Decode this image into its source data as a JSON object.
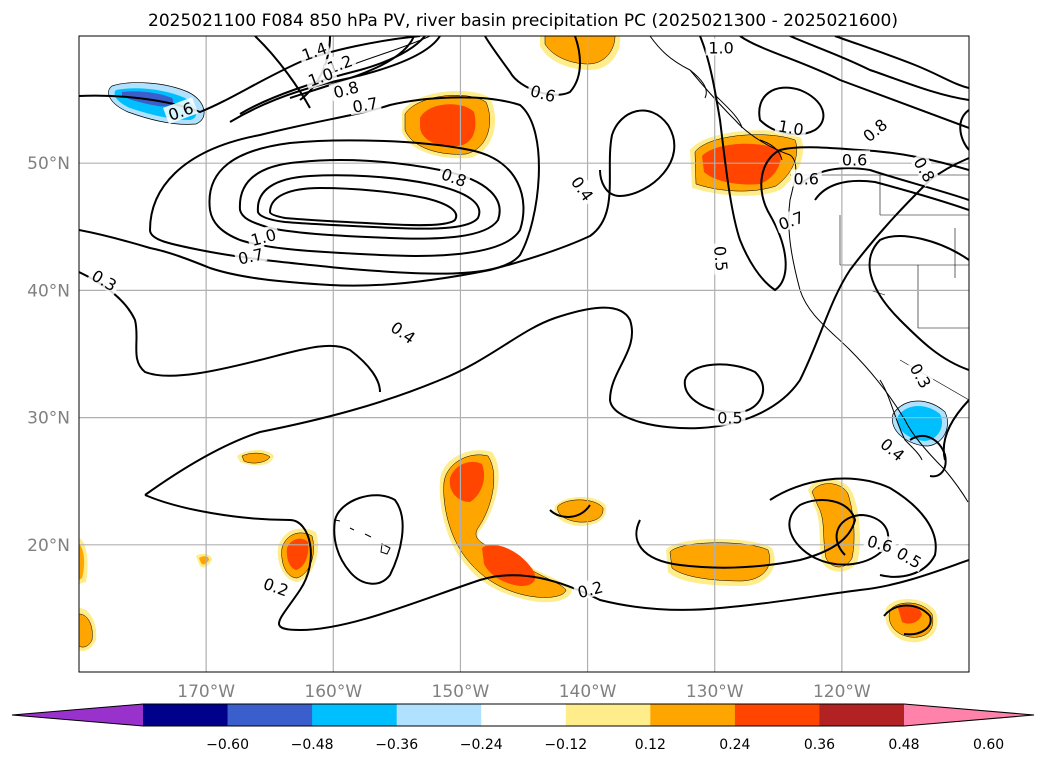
{
  "title": "2025021100 F084 850 hPa PV, river basin precipitation PC (2025021300 - 2025021600)",
  "map": {
    "lon_range": [
      -180,
      -110
    ],
    "lat_range": [
      10,
      60
    ],
    "lat_ticks": [
      {
        "value": 50,
        "label": "50°N"
      },
      {
        "value": 40,
        "label": "40°N"
      },
      {
        "value": 30,
        "label": "30°N"
      },
      {
        "value": 20,
        "label": "20°N"
      }
    ],
    "lon_ticks": [
      {
        "value": -170,
        "label": "170°W"
      },
      {
        "value": -160,
        "label": "160°W"
      },
      {
        "value": -150,
        "label": "150°W"
      },
      {
        "value": -140,
        "label": "140°W"
      },
      {
        "value": -130,
        "label": "130°W"
      },
      {
        "value": -120,
        "label": "120°W"
      }
    ],
    "grid": true,
    "contour_color": "#000000",
    "contour_labels": [
      {
        "lon": -178,
        "lat": 40.8,
        "text": "0.3",
        "rot": 30
      },
      {
        "lon": -176,
        "lat": 40.8,
        "text": "",
        "rot": 0
      },
      {
        "lon": -150.5,
        "lat": 48.9,
        "text": "0.8",
        "rot": 20
      },
      {
        "lon": -165.5,
        "lat": 44.2,
        "text": "1.0",
        "rot": -15
      },
      {
        "lon": -166.5,
        "lat": 42.7,
        "text": "0.7",
        "rot": -12
      },
      {
        "lon": -154.5,
        "lat": 36.7,
        "text": "0.4",
        "rot": 35
      },
      {
        "lon": -143.5,
        "lat": 55.5,
        "text": "0.6",
        "rot": 15
      },
      {
        "lon": -140.4,
        "lat": 48,
        "text": "0.4",
        "rot": 55
      },
      {
        "lon": -129.5,
        "lat": 59.1,
        "text": "1.0",
        "rot": 0
      },
      {
        "lon": -129.5,
        "lat": 42.5,
        "text": "0.5",
        "rot": 85
      },
      {
        "lon": -128.8,
        "lat": 30,
        "text": "0.5",
        "rot": 0
      },
      {
        "lon": -124,
        "lat": 52.8,
        "text": "1.0",
        "rot": 10
      },
      {
        "lon": -117.4,
        "lat": 52.6,
        "text": "0.8",
        "rot": -40
      },
      {
        "lon": -119,
        "lat": 50.3,
        "text": "0.6",
        "rot": 0
      },
      {
        "lon": -122.8,
        "lat": 48.8,
        "text": "0.6",
        "rot": 0
      },
      {
        "lon": -124,
        "lat": 45.5,
        "text": "0.7",
        "rot": -20
      },
      {
        "lon": -113.5,
        "lat": 49.5,
        "text": "0.8",
        "rot": 60
      },
      {
        "lon": -161.5,
        "lat": 58.8,
        "text": "1.4",
        "rot": -20
      },
      {
        "lon": -159.5,
        "lat": 57.8,
        "text": "1.2",
        "rot": -20
      },
      {
        "lon": -161,
        "lat": 56.8,
        "text": "1.0",
        "rot": -20
      },
      {
        "lon": -159,
        "lat": 55.8,
        "text": "0.8",
        "rot": -15
      },
      {
        "lon": -157.5,
        "lat": 54.6,
        "text": "0.7",
        "rot": -10
      },
      {
        "lon": -172,
        "lat": 54.1,
        "text": "0.6",
        "rot": -20
      },
      {
        "lon": -164.5,
        "lat": 16.7,
        "text": "0.2",
        "rot": 20
      },
      {
        "lon": -139.8,
        "lat": 16.5,
        "text": "0.2",
        "rot": -15
      },
      {
        "lon": -117,
        "lat": 20.1,
        "text": "0.6",
        "rot": 15
      },
      {
        "lon": -114.7,
        "lat": 19,
        "text": "0.5",
        "rot": 30
      },
      {
        "lon": -116,
        "lat": 27.5,
        "text": "0.4",
        "rot": 40
      },
      {
        "lon": -113.8,
        "lat": 33.3,
        "text": "0.3",
        "rot": 60
      }
    ]
  },
  "colorbar": {
    "colors": [
      "#9932cc",
      "#00008b",
      "#3a5fcd",
      "#00bfff",
      "#b0e2ff",
      "#ffffff",
      "#ffec8b",
      "#ffa500",
      "#ff4500",
      "#b22222",
      "#ff82ab"
    ],
    "tick_labels": [
      "−0.60",
      "−0.48",
      "−0.36",
      "−0.24",
      "−0.12",
      "0.12",
      "0.24",
      "0.36",
      "0.48",
      "0.60"
    ]
  },
  "legend": {
    "field_contours": "850 hPa PV",
    "field_shading": "river basin precipitation PC"
  }
}
